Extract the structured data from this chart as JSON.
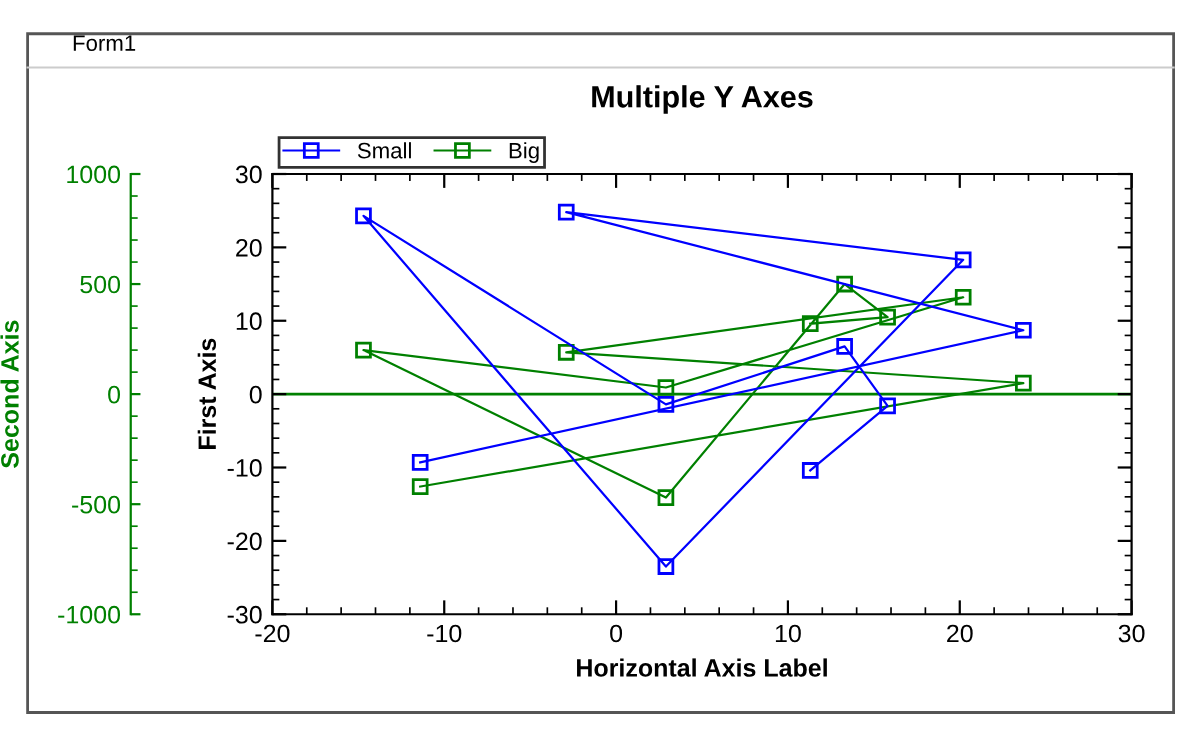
{
  "chart_data": {
    "type": "line",
    "title": "Multiple Y Axes",
    "xlabel": "Horizontal Axis Label",
    "ylabel": "First Axis",
    "y2label": "Second Axis",
    "annotations": [
      "Form1"
    ],
    "x": [
      11.3,
      15.8,
      13.3,
      2.9,
      -14.7,
      2.9,
      20.2,
      -2.9,
      23.7,
      -11.4
    ],
    "series": [
      {
        "name": "Small",
        "color": "#0000ff",
        "values": [
          -10.4,
          -1.6,
          6.5,
          -1.4,
          24.3,
          -23.5,
          18.3,
          24.8,
          8.7,
          -9.3
        ]
      },
      {
        "name": "Big",
        "color": "#008000",
        "axis": "y2",
        "values": [
          320,
          350,
          500,
          -470,
          200,
          30,
          440,
          190,
          50,
          -420
        ]
      }
    ],
    "xlim": [
      -20,
      30
    ],
    "xticks": [
      -20,
      -10,
      0,
      10,
      20,
      30
    ],
    "ylim": [
      -30,
      30
    ],
    "yticks": [
      -30,
      -20,
      -10,
      0,
      10,
      20,
      30
    ],
    "y2lim": [
      -1000,
      1000
    ],
    "y2ticks": [
      -1000,
      -500,
      0,
      500,
      1000
    ],
    "ref_lines": [
      {
        "axis": "y",
        "value": 0,
        "color": "#008000"
      }
    ],
    "marker": "square",
    "line_style": "solid",
    "grid": false,
    "legend": "top left"
  }
}
